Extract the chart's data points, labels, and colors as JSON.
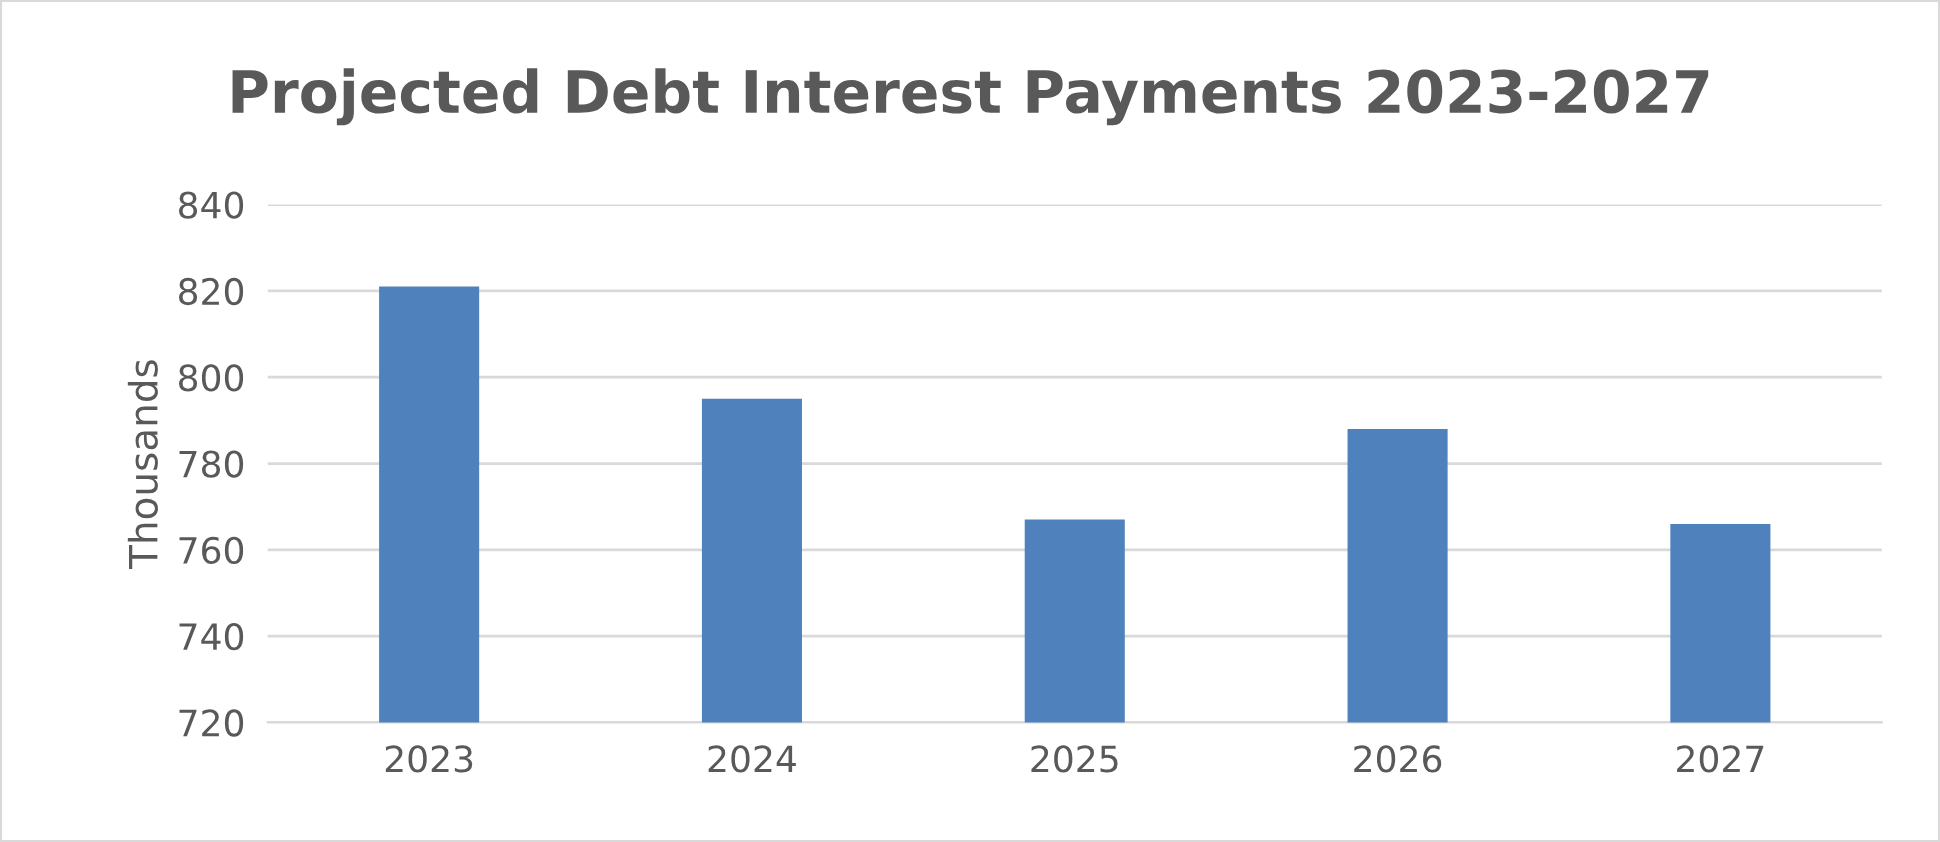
{
  "chart_data": {
    "type": "bar",
    "title": "Projected Debt Interest Payments 2023-2027",
    "ylabel": "Thousands",
    "categories": [
      "2023",
      "2024",
      "2025",
      "2026",
      "2027"
    ],
    "values": [
      821,
      795,
      767,
      788,
      766
    ],
    "color": "#4f81bd",
    "ylim": [
      720,
      840
    ],
    "yticks": [
      720,
      740,
      760,
      780,
      800,
      820,
      840
    ],
    "grid": "y",
    "legend": false
  }
}
